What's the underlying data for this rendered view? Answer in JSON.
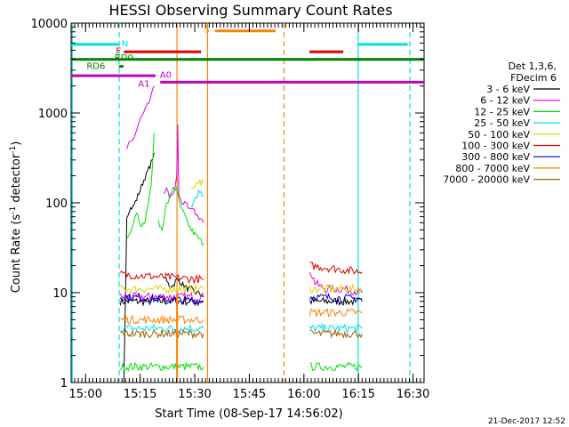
{
  "chart_data": {
    "type": "line",
    "title": "HESSI Observing Summary Count Rates",
    "xlabel": "Start Time (08-Sep-17 14:56:02)",
    "ylabel_main": "Count Rate (s",
    "ylabel_sup1": "-1",
    "ylabel_mid": " detector",
    "ylabel_sup2": "-1",
    "ylabel_end": ")",
    "x_axis": {
      "start_min": 0,
      "end_min": 97,
      "ticks": [
        {
          "t": 3.97,
          "label": "15:00"
        },
        {
          "t": 18.97,
          "label": "15:15"
        },
        {
          "t": 33.97,
          "label": "15:30"
        },
        {
          "t": 48.97,
          "label": "15:45"
        },
        {
          "t": 63.97,
          "label": "16:00"
        },
        {
          "t": 78.97,
          "label": "16:15"
        },
        {
          "t": 93.97,
          "label": "16:30"
        }
      ]
    },
    "y_axis": {
      "scale": "log",
      "min": 1,
      "max": 10000,
      "ticks": [
        {
          "v": 1,
          "label": "1"
        },
        {
          "v": 10,
          "label": "10"
        },
        {
          "v": 100,
          "label": "100"
        },
        {
          "v": 1000,
          "label": "1000"
        },
        {
          "v": 10000,
          "label": "10000"
        }
      ]
    },
    "legend": {
      "placement": "right",
      "header1": "Det 1,3,6,",
      "header2": "FDecim 6",
      "entries": [
        {
          "label": "3 - 6 keV",
          "color": "#000000"
        },
        {
          "label": "6 - 12 keV",
          "color": "#e000e0"
        },
        {
          "label": "12 - 25 keV",
          "color": "#00e000"
        },
        {
          "label": "25 - 50 keV",
          "color": "#00e0e0"
        },
        {
          "label": "50 - 100 keV",
          "color": "#d8d800"
        },
        {
          "label": "100 - 300 keV",
          "color": "#e00000"
        },
        {
          "label": "300 - 800 keV",
          "color": "#0000c8"
        },
        {
          "label": "800 - 7000 keV",
          "color": "#ff8000"
        },
        {
          "label": "7000 - 20000 keV",
          "color": "#a06000"
        }
      ]
    },
    "segments": [
      {
        "t0": 13.0,
        "t1": 36.6,
        "noisy": true
      },
      {
        "t0": 65.5,
        "t1": 80.2,
        "noisy": true
      }
    ],
    "series": [
      {
        "name": "3 - 6 keV",
        "color": "#000000",
        "points": [
          [
            14.5,
            1
          ],
          [
            15.3,
            70
          ],
          [
            16,
            85
          ],
          [
            17,
            90
          ],
          [
            18,
            110
          ],
          [
            19,
            140
          ],
          [
            20,
            180
          ],
          [
            21,
            220
          ],
          [
            22,
            280
          ],
          [
            22.8,
            360
          ]
        ],
        "pts2": [
          [
            26,
            14
          ],
          [
            27,
            12
          ],
          [
            28,
            12
          ],
          [
            29,
            14
          ],
          [
            30,
            13
          ],
          [
            31,
            12
          ],
          [
            32,
            11
          ],
          [
            33,
            11
          ],
          [
            34,
            10
          ],
          [
            35,
            10
          ],
          [
            36.4,
            9
          ]
        ],
        "low": [
          [
            13.5,
            8
          ],
          [
            36.4,
            8
          ]
        ],
        "seg2": [
          [
            65.6,
            8
          ],
          [
            80,
            8
          ]
        ]
      },
      {
        "name": "6 - 12 keV",
        "color": "#e000e0",
        "points": [
          [
            15.3,
            400
          ],
          [
            16,
            450
          ],
          [
            17,
            500
          ],
          [
            18,
            650
          ],
          [
            19,
            850
          ],
          [
            20,
            1000
          ],
          [
            21,
            1200
          ],
          [
            22,
            1500
          ],
          [
            22.8,
            2000
          ]
        ],
        "pts2": [
          [
            25.5,
            130
          ],
          [
            26.2,
            150
          ],
          [
            27,
            110
          ],
          [
            28,
            120
          ],
          [
            29,
            190
          ],
          [
            29.3,
            700
          ],
          [
            29.6,
            120
          ],
          [
            30.5,
            95
          ],
          [
            31.5,
            100
          ],
          [
            32.5,
            85
          ],
          [
            33.5,
            90
          ],
          [
            34.5,
            70
          ],
          [
            35.5,
            65
          ],
          [
            36.4,
            60
          ]
        ],
        "low": [
          [
            13.5,
            9
          ],
          [
            36.4,
            9
          ]
        ],
        "seg2": [
          [
            65.6,
            18
          ],
          [
            67,
            13
          ],
          [
            68,
            12
          ],
          [
            70,
            11
          ],
          [
            75,
            11
          ],
          [
            80,
            10
          ]
        ]
      },
      {
        "name": "12 - 25 keV",
        "color": "#00e000",
        "points": [
          [
            15.3,
            40
          ],
          [
            16,
            45
          ],
          [
            17,
            60
          ],
          [
            18,
            80
          ],
          [
            19,
            60
          ],
          [
            20,
            55
          ],
          [
            21,
            90
          ],
          [
            22,
            150
          ],
          [
            22.8,
            600
          ]
        ],
        "pts2": [
          [
            24,
            60
          ],
          [
            25,
            50
          ],
          [
            26,
            90
          ],
          [
            27,
            110
          ],
          [
            28,
            150
          ],
          [
            29,
            140
          ],
          [
            30,
            90
          ],
          [
            31,
            75
          ],
          [
            32,
            60
          ],
          [
            33,
            50
          ],
          [
            34,
            45
          ],
          [
            35,
            40
          ],
          [
            36.4,
            35
          ]
        ],
        "low": [
          [
            13.5,
            1.5
          ],
          [
            36.4,
            1.5
          ]
        ],
        "seg2": [
          [
            65.6,
            1.5
          ],
          [
            80,
            1.5
          ]
        ]
      },
      {
        "name": "25 - 50 keV",
        "color": "#00e0e0",
        "points": [
          [
            33,
            90
          ],
          [
            34,
            110
          ],
          [
            35,
            130
          ],
          [
            36.4,
            120
          ]
        ],
        "pts2": [],
        "low": [
          [
            13.5,
            4
          ],
          [
            36.4,
            4
          ]
        ],
        "seg2": [
          [
            65.6,
            4
          ],
          [
            80,
            4
          ]
        ]
      },
      {
        "name": "50 - 100 keV",
        "color": "#d8d800",
        "points": [
          [
            33,
            140
          ],
          [
            34,
            160
          ],
          [
            35,
            170
          ],
          [
            36.4,
            170
          ]
        ],
        "pts2": [],
        "low": [
          [
            13.5,
            11
          ],
          [
            36.4,
            11
          ]
        ],
        "seg2": [
          [
            65.6,
            11
          ],
          [
            80,
            11
          ]
        ]
      },
      {
        "name": "100 - 300 keV",
        "color": "#e00000",
        "points": [],
        "pts2": [],
        "low": [
          [
            13.5,
            16
          ],
          [
            36.4,
            14
          ]
        ],
        "seg2": [
          [
            65.6,
            20
          ],
          [
            80,
            17
          ]
        ]
      },
      {
        "name": "300 - 800 keV",
        "color": "#0000c8",
        "points": [],
        "pts2": [],
        "low": [
          [
            13.5,
            9
          ],
          [
            36.4,
            8
          ]
        ],
        "seg2": [
          [
            65.6,
            9
          ],
          [
            80,
            8.5
          ]
        ]
      },
      {
        "name": "800 - 7000 keV",
        "color": "#ff8000",
        "points": [],
        "pts2": [],
        "low": [
          [
            13.5,
            5
          ],
          [
            36.4,
            5
          ]
        ],
        "seg2": [
          [
            65.6,
            6
          ],
          [
            80,
            6
          ]
        ]
      },
      {
        "name": "7000 - 20000 keV",
        "color": "#a06000",
        "points": [],
        "pts2": [],
        "low": [
          [
            13.5,
            3.5
          ],
          [
            36.4,
            3.5
          ]
        ],
        "seg2": [
          [
            65.6,
            3.5
          ],
          [
            80,
            3.5
          ]
        ]
      }
    ],
    "flags": [
      {
        "label": "N",
        "color": "#00e0e0",
        "y": 5800,
        "bars": [
          [
            0,
            13.2
          ],
          [
            78.9,
            92.5
          ]
        ],
        "label_t": 14.8,
        "label_y": 6000
      },
      {
        "label": "S",
        "color": "#ff8000",
        "y": 8200,
        "bars": [
          [
            39.5,
            56.2
          ]
        ],
        "label_t": 37.2,
        "label_y": 8600
      },
      {
        "label": "F",
        "color": "#e00000",
        "y": 4800,
        "bars": [
          [
            14.5,
            35.7
          ],
          [
            65.5,
            74.8
          ]
        ],
        "label_t": 13.0,
        "label_y": 5000
      },
      {
        "label": "RD0",
        "color": "#008000",
        "y": 3950,
        "bars": [
          [
            0,
            97
          ]
        ],
        "label_t": 14.5,
        "label_y": 4200
      },
      {
        "label": "RD6",
        "color": "#008000",
        "y": 3300,
        "bars": [
          [
            13.2,
            14.4
          ]
        ],
        "label_t": 6.8,
        "label_y": 3400
      },
      {
        "label": "A0",
        "color": "#c000c0",
        "y": 2600,
        "bars": [
          [
            0,
            23.2
          ]
        ],
        "label_t": 26.0,
        "label_y": 2700
      },
      {
        "label": "A1",
        "color": "#c000c0",
        "y": 2200,
        "bars": [
          [
            24.5,
            97
          ]
        ],
        "label_t": 20.0,
        "label_y": 2150
      }
    ],
    "vlines": [
      {
        "t": 0.3,
        "color": "#00e0e0",
        "dash": false
      },
      {
        "t": 13.2,
        "color": "#00e0e0",
        "dash": true
      },
      {
        "t": 29.1,
        "color": "#ff8000",
        "dash": false,
        "drop": true
      },
      {
        "t": 37.5,
        "color": "#ff8000",
        "dash": false
      },
      {
        "t": 58.5,
        "color": "#ff8000",
        "dash": true
      },
      {
        "t": 78.9,
        "color": "#00e0e0",
        "dash": false
      },
      {
        "t": 93.1,
        "color": "#00e0e0",
        "dash": true
      }
    ]
  },
  "footer_stamp": "21-Dec-2017 12:52"
}
